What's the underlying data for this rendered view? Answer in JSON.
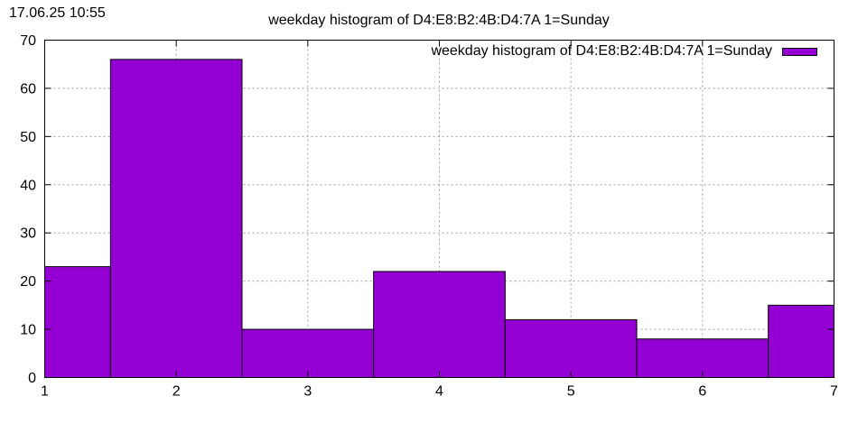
{
  "timestamp": "17.06.25 10:55",
  "chart_data": {
    "type": "bar",
    "title": "weekday histogram of D4:E8:B2:4B:D4:7A 1=Sunday",
    "xlabel": "",
    "ylabel": "",
    "x": [
      1,
      2,
      3,
      4,
      5,
      6,
      7
    ],
    "values": [
      23,
      66,
      10,
      22,
      12,
      8,
      15
    ],
    "xlim": [
      1,
      7
    ],
    "ylim": [
      0,
      70
    ],
    "x_ticks": [
      1,
      2,
      3,
      4,
      5,
      6,
      7
    ],
    "y_ticks": [
      0,
      10,
      20,
      30,
      40,
      50,
      60,
      70
    ],
    "grid": true,
    "legend": {
      "position": "top-right",
      "entries": [
        "weekday histogram of D4:E8:B2:4B:D4:7A 1=Sunday"
      ]
    },
    "series": [
      {
        "name": "weekday histogram of D4:E8:B2:4B:D4:7A 1=Sunday",
        "color": "#9400d3",
        "values": [
          23,
          66,
          10,
          22,
          12,
          8,
          15
        ]
      }
    ]
  }
}
